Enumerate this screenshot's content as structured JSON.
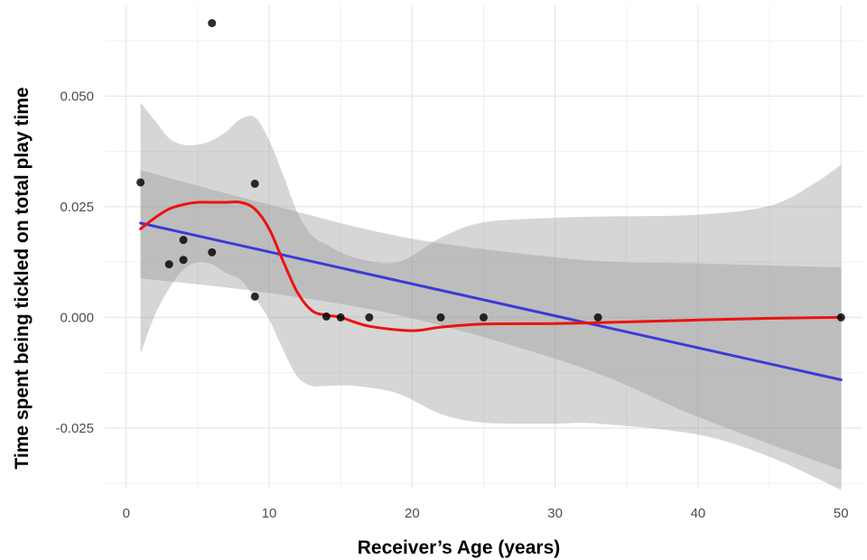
{
  "chart_data": {
    "type": "scatter",
    "title": "",
    "xlabel": "Receiver’s Age (years)",
    "ylabel": "Time spent being tickled on total play time",
    "xlim": [
      -1.5,
      51.5
    ],
    "ylim": [
      -0.0385,
      0.0705
    ],
    "x_ticks": [
      0,
      10,
      20,
      30,
      40,
      50
    ],
    "x_tick_labels": [
      "0",
      "10",
      "20",
      "30",
      "40",
      "50"
    ],
    "y_ticks": [
      -0.025,
      0.0,
      0.025,
      0.05
    ],
    "y_tick_labels": [
      "-0.025",
      "0.000",
      "0.025",
      "0.050"
    ],
    "grid": true,
    "points": [
      {
        "x": 1,
        "y": 0.0305
      },
      {
        "x": 3,
        "y": 0.012
      },
      {
        "x": 4,
        "y": 0.0175
      },
      {
        "x": 4,
        "y": 0.013
      },
      {
        "x": 6,
        "y": 0.0665
      },
      {
        "x": 6,
        "y": 0.0147
      },
      {
        "x": 9,
        "y": 0.0302
      },
      {
        "x": 9,
        "y": 0.0047
      },
      {
        "x": 14,
        "y": 0.0002
      },
      {
        "x": 15,
        "y": 0.0
      },
      {
        "x": 17,
        "y": 0.0
      },
      {
        "x": 22,
        "y": 0.0
      },
      {
        "x": 25,
        "y": 0.0
      },
      {
        "x": 33,
        "y": 0.0
      },
      {
        "x": 50,
        "y": 0.0
      }
    ],
    "series": [
      {
        "kind": "linear-fit",
        "color": "#3b3bd6",
        "x": [
          1,
          50
        ],
        "y": [
          0.0213,
          -0.0141
        ],
        "ci_upper": [
          [
            1,
            0.0333
          ],
          [
            10,
            0.0255
          ],
          [
            20,
            0.0178
          ],
          [
            32,
            0.013
          ],
          [
            40,
            0.0122
          ],
          [
            50,
            0.0113
          ]
        ],
        "ci_lower": [
          [
            1,
            0.0088
          ],
          [
            10,
            0.0055
          ],
          [
            20,
            -0.0002
          ],
          [
            32,
            -0.0115
          ],
          [
            40,
            -0.0225
          ],
          [
            50,
            -0.0345
          ]
        ]
      },
      {
        "kind": "smooth-fit",
        "color": "#ee1111",
        "x": [
          1,
          2,
          3,
          4,
          5,
          6,
          7,
          8,
          9,
          10,
          11,
          12,
          13,
          14,
          15,
          17,
          20,
          22,
          25,
          30,
          33,
          40,
          45,
          50
        ],
        "y": [
          0.02,
          0.0225,
          0.0245,
          0.0255,
          0.026,
          0.026,
          0.026,
          0.026,
          0.0245,
          0.02,
          0.0125,
          0.0055,
          0.0015,
          0.0005,
          0.0,
          -0.002,
          -0.003,
          -0.0022,
          -0.0015,
          -0.0014,
          -0.0012,
          -0.0006,
          -0.0002,
          0.0
        ],
        "ci_upper": [
          [
            1,
            0.0485
          ],
          [
            2,
            0.0445
          ],
          [
            3,
            0.0405
          ],
          [
            4,
            0.039
          ],
          [
            5,
            0.039
          ],
          [
            6,
            0.04
          ],
          [
            7,
            0.042
          ],
          [
            8,
            0.0448
          ],
          [
            9,
            0.0452
          ],
          [
            10,
            0.04
          ],
          [
            11,
            0.032
          ],
          [
            12,
            0.0235
          ],
          [
            13,
            0.0185
          ],
          [
            14,
            0.0165
          ],
          [
            16,
            0.0135
          ],
          [
            19,
            0.0125
          ],
          [
            22,
            0.018
          ],
          [
            25,
            0.0215
          ],
          [
            30,
            0.0225
          ],
          [
            33,
            0.0228
          ],
          [
            40,
            0.0232
          ],
          [
            45,
            0.0252
          ],
          [
            48,
            0.03
          ],
          [
            50,
            0.0345
          ]
        ],
        "ci_lower": [
          [
            1,
            -0.0083
          ],
          [
            2,
            0.0005
          ],
          [
            3,
            0.0065
          ],
          [
            4,
            0.0108
          ],
          [
            5,
            0.0125
          ],
          [
            6,
            0.012
          ],
          [
            7,
            0.01
          ],
          [
            8,
            0.0085
          ],
          [
            9,
            0.0045
          ],
          [
            10,
            -0.0005
          ],
          [
            11,
            -0.0075
          ],
          [
            12,
            -0.0135
          ],
          [
            13,
            -0.0155
          ],
          [
            14,
            -0.0155
          ],
          [
            16,
            -0.0155
          ],
          [
            19,
            -0.0172
          ],
          [
            22,
            -0.0218
          ],
          [
            25,
            -0.0238
          ],
          [
            30,
            -0.024
          ],
          [
            33,
            -0.024
          ],
          [
            40,
            -0.0265
          ],
          [
            45,
            -0.0315
          ],
          [
            50,
            -0.039
          ]
        ]
      }
    ]
  }
}
